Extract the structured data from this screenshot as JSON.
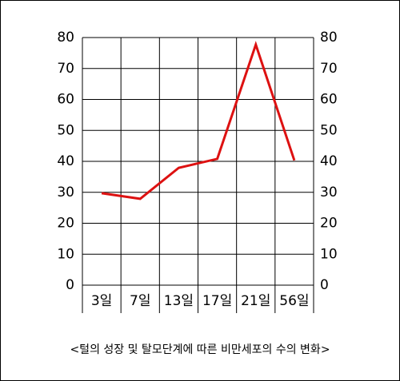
{
  "chart_data": {
    "type": "line",
    "categories": [
      "3일",
      "7일",
      "13일",
      "17일",
      "21일",
      "56일"
    ],
    "series": [
      {
        "name": "비만세포의 수",
        "color": "#dd1111",
        "values": [
          29.7,
          27.9,
          37.9,
          40.8,
          77.7,
          40.3
        ]
      }
    ],
    "ylim": [
      0,
      80
    ],
    "yticks": [
      0,
      10,
      20,
      30,
      40,
      50,
      60,
      70,
      80
    ],
    "y2lim": [
      0,
      80
    ],
    "y2ticks": [
      0,
      10,
      20,
      30,
      40,
      50,
      60,
      70,
      80
    ],
    "grid": true,
    "caption": "<털의 성장 및 탈모단계에 따른 비만세포의 수의 변화>"
  }
}
